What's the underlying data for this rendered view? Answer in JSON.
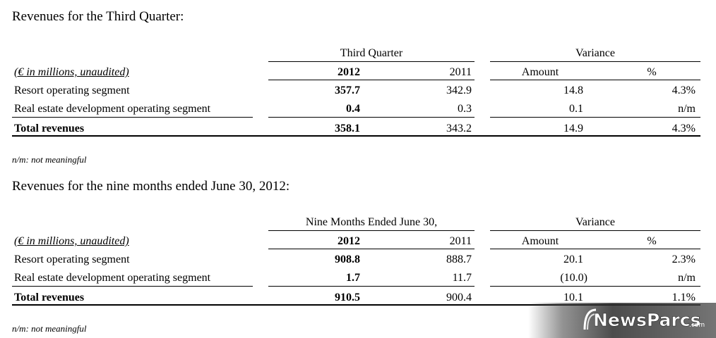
{
  "section1": {
    "title": "Revenues for the Third Quarter:",
    "group_left": "Third Quarter",
    "group_right": "Variance",
    "col_label": "(€ in millions, unaudited)",
    "col_2012": "2012",
    "col_2011": "2011",
    "col_amount": "Amount",
    "col_pct": "%",
    "rows": [
      {
        "label": "Resort operating segment",
        "v2012": "357.7",
        "v2011": "342.9",
        "amount": "14.8",
        "pct": "4.3%"
      },
      {
        "label": "Real estate development operating segment",
        "v2012": "0.4",
        "v2011": "0.3",
        "amount": "0.1",
        "pct": "n/m"
      },
      {
        "label": "Total revenues",
        "v2012": "358.1",
        "v2011": "343.2",
        "amount": "14.9",
        "pct": "4.3%"
      }
    ],
    "footnote": "n/m: not meaningful"
  },
  "section2": {
    "title": "Revenues for the nine months ended June 30, 2012:",
    "group_left": "Nine Months Ended June 30,",
    "group_right": "Variance",
    "col_label": "(€ in millions, unaudited)",
    "col_2012": "2012",
    "col_2011": "2011",
    "col_amount": "Amount",
    "col_pct": "%",
    "rows": [
      {
        "label": "Resort operating segment",
        "v2012": "908.8",
        "v2011": "888.7",
        "amount": "20.1",
        "pct": "2.3%"
      },
      {
        "label": "Real estate development operating segment",
        "v2012": "1.7",
        "v2011": "11.7",
        "amount": "(10.0)",
        "pct": "n/m"
      },
      {
        "label": "Total revenues",
        "v2012": "910.5",
        "v2011": "900.4",
        "amount": "10.1",
        "pct": "1.1%"
      }
    ],
    "footnote": "n/m: not meaningful"
  },
  "watermark": {
    "brand": "NewsParcs",
    "suffix": ".com"
  }
}
